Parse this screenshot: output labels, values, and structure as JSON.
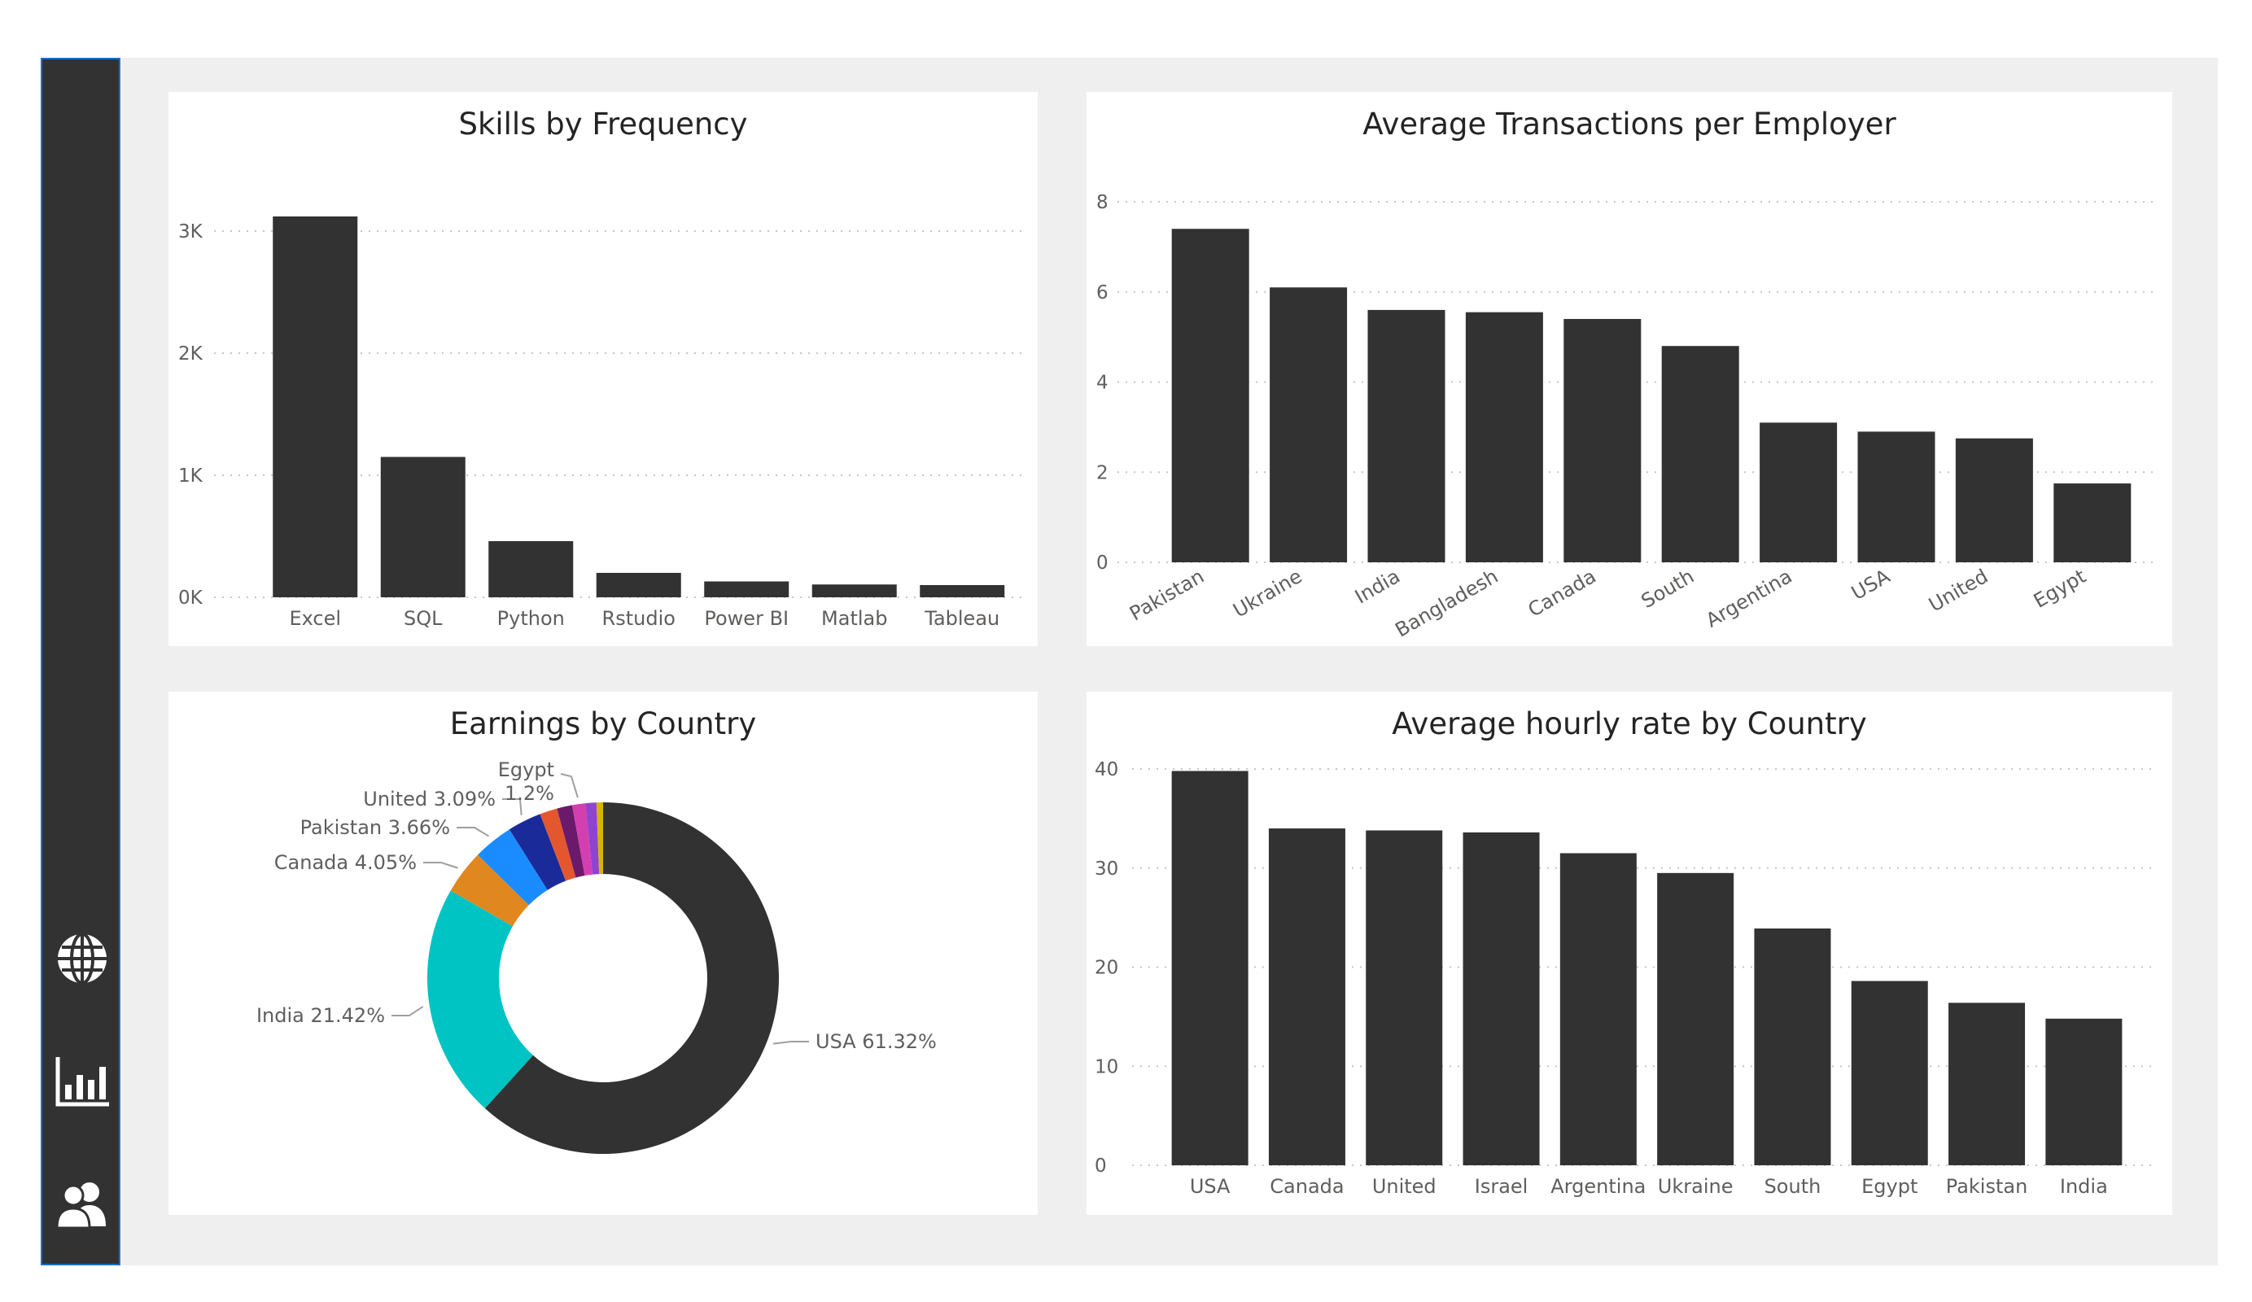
{
  "nav": {
    "items": [
      {
        "icon": "globe-icon"
      },
      {
        "icon": "bar-chart-icon"
      },
      {
        "icon": "users-icon"
      }
    ]
  },
  "colors": {
    "bar": "#323232",
    "sidebar": "#323232",
    "canvas": "#efefef"
  },
  "chart_data": [
    {
      "type": "bar",
      "title": "Skills by Frequency",
      "categories": [
        "Excel",
        "SQL",
        "Python",
        "Rstudio",
        "Power BI",
        "Matlab",
        "Tableau"
      ],
      "values": [
        3120,
        1150,
        460,
        200,
        130,
        105,
        100
      ],
      "yticks": [
        "0K",
        "1K",
        "2K",
        "3K"
      ],
      "ylim": [
        0,
        3400
      ],
      "grid": true
    },
    {
      "type": "bar",
      "title": "Average Transactions per Employer",
      "categories": [
        "Pakistan",
        "Ukraine",
        "India",
        "Bangladesh",
        "Canada",
        "South",
        "Argentina",
        "USA",
        "United",
        "Egypt"
      ],
      "values": [
        7.4,
        6.1,
        5.6,
        5.55,
        5.4,
        4.8,
        3.1,
        2.9,
        2.75,
        1.75
      ],
      "yticks": [
        "0",
        "2",
        "4",
        "6",
        "8"
      ],
      "ylim": [
        0,
        8
      ],
      "grid": true
    },
    {
      "type": "pie",
      "title": "Earnings by Country",
      "slices": [
        {
          "name": "USA",
          "value": 61.32,
          "label": "USA 61.32%",
          "color": "#323232"
        },
        {
          "name": "India",
          "value": 21.42,
          "label": "India 21.42%",
          "color": "#00c3c3"
        },
        {
          "name": "Canada",
          "value": 4.05,
          "label": "Canada 4.05%",
          "color": "#e0881f"
        },
        {
          "name": "Pakistan",
          "value": 3.66,
          "label": "Pakistan 3.66%",
          "color": "#1a8cff"
        },
        {
          "name": "United",
          "value": 3.09,
          "label": "United 3.09%",
          "color": "#1a2a99"
        },
        {
          "name": "Other A",
          "value": 1.6,
          "label": "",
          "color": "#e4572e"
        },
        {
          "name": "Other B",
          "value": 1.4,
          "label": "",
          "color": "#6b1a6b"
        },
        {
          "name": "Egypt",
          "value": 1.2,
          "label_line1": "Egypt",
          "label_line2": "1.2%",
          "color": "#d43fb0"
        },
        {
          "name": "Other C",
          "value": 1.0,
          "label": "",
          "color": "#8e44d1"
        },
        {
          "name": "Other D",
          "value": 0.6,
          "label": "",
          "color": "#d9b300"
        }
      ]
    },
    {
      "type": "bar",
      "title": "Average hourly rate by Country",
      "categories": [
        "USA",
        "Canada",
        "United",
        "Israel",
        "Argentina",
        "Ukraine",
        "South",
        "Egypt",
        "Pakistan",
        "India"
      ],
      "values": [
        39.8,
        34,
        33.8,
        33.6,
        31.5,
        29.5,
        23.9,
        18.6,
        16.4,
        14.8
      ],
      "yticks": [
        "0",
        "10",
        "20",
        "30",
        "40"
      ],
      "ylim": [
        0,
        40
      ],
      "grid": true
    }
  ]
}
